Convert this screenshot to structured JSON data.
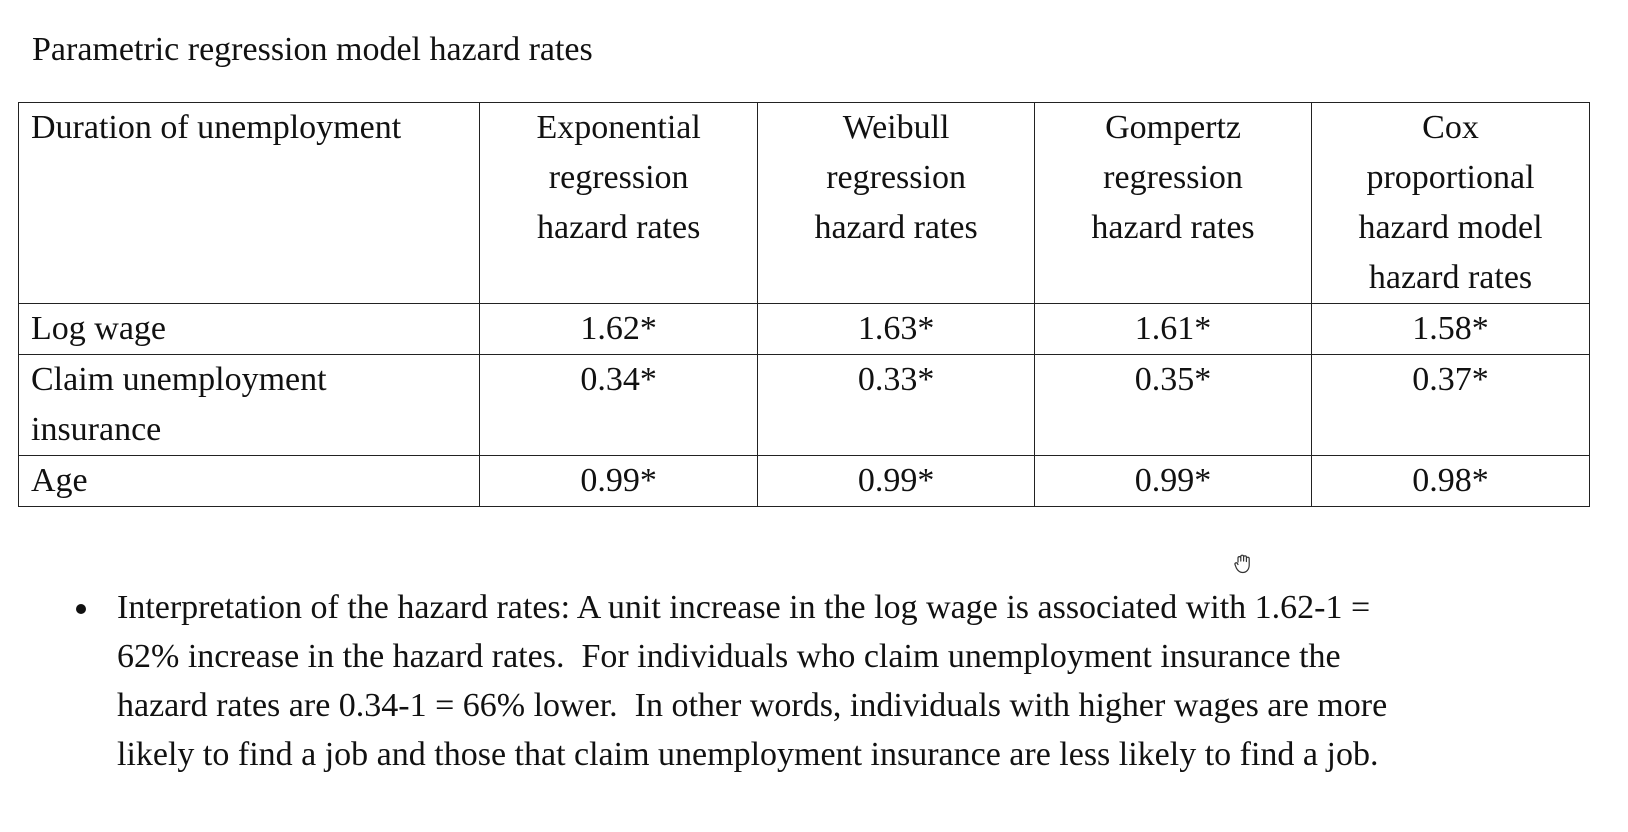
{
  "title": "Parametric regression model hazard rates",
  "table": {
    "headers": [
      "Duration of unemployment",
      "Exponential regression hazard rates",
      "Weibull regression hazard rates",
      "Gompertz regression hazard rates",
      "Cox proportional hazard model hazard rates"
    ],
    "header_lines": [
      [
        "Duration of unemployment"
      ],
      [
        "Exponential",
        "regression",
        "hazard rates"
      ],
      [
        "Weibull",
        "regression",
        "hazard rates"
      ],
      [
        "Gompertz",
        "regression",
        "hazard rates"
      ],
      [
        "Cox",
        "proportional",
        "hazard model",
        "hazard rates"
      ]
    ],
    "rows": [
      {
        "label_lines": [
          "Log wage"
        ],
        "values": [
          "1.62*",
          "1.63*",
          "1.61*",
          "1.58*"
        ]
      },
      {
        "label_lines": [
          "Claim unemployment",
          "insurance"
        ],
        "values": [
          "0.34*",
          "0.33*",
          "0.35*",
          "0.37*"
        ]
      },
      {
        "label_lines": [
          "Age"
        ],
        "values": [
          "0.99*",
          "0.99*",
          "0.99*",
          "0.98*"
        ]
      }
    ]
  },
  "bullet": {
    "lines": [
      "Interpretation of the hazard rates: A unit increase in the log wage is associated with 1.62-1 =",
      "62% increase in the hazard rates.  For individuals who claim unemployment insurance the",
      "hazard rates are 0.34-1 = 66% lower.  In other words, individuals with higher wages are more",
      "likely to find a job and those that claim unemployment insurance are less likely to find a job."
    ]
  },
  "cursor": {
    "icon": "hand-grab-icon"
  }
}
